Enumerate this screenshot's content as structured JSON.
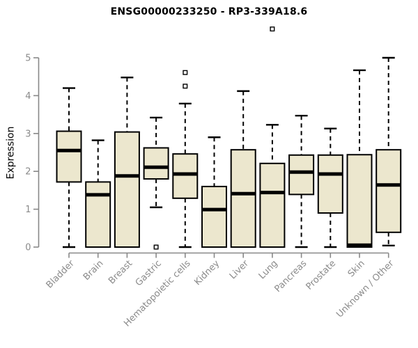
{
  "chart_data": {
    "type": "boxplot",
    "title": "ENSG00000233250 - RP3-339A18.6",
    "ylabel": "Expression",
    "xlabel": "",
    "ylim": [
      0,
      5
    ],
    "yticks": [
      "0",
      "1",
      "2",
      "3",
      "4",
      "5"
    ],
    "grid": false,
    "legend": "none",
    "categories": [
      "Bladder",
      "Brain",
      "Breast",
      "Gastric",
      "Hematopoietic cells",
      "Kidney",
      "Liver",
      "Lung",
      "Pancreas",
      "Prostate",
      "Skin",
      "Unknown / Other"
    ],
    "series": [
      {
        "name": "Bladder",
        "low": 0,
        "q1": 1.72,
        "median": 2.55,
        "q3": 3.06,
        "high": 4.2,
        "outliers": []
      },
      {
        "name": "Brain",
        "low": 0,
        "q1": 0,
        "median": 1.38,
        "q3": 1.72,
        "high": 2.82,
        "outliers": []
      },
      {
        "name": "Breast",
        "low": 0,
        "q1": 0,
        "median": 1.88,
        "q3": 3.04,
        "high": 4.48,
        "outliers": []
      },
      {
        "name": "Gastric",
        "low": 1.05,
        "q1": 1.8,
        "median": 2.11,
        "q3": 2.62,
        "high": 3.42,
        "outliers": [
          0
        ]
      },
      {
        "name": "Hematopoietic cells",
        "low": 0,
        "q1": 1.29,
        "median": 1.93,
        "q3": 2.46,
        "high": 3.79,
        "outliers": [
          4.61,
          4.25
        ]
      },
      {
        "name": "Kidney",
        "low": 0,
        "q1": 0,
        "median": 0.99,
        "q3": 1.6,
        "high": 2.9,
        "outliers": []
      },
      {
        "name": "Liver",
        "low": 0,
        "q1": 0,
        "median": 1.41,
        "q3": 2.57,
        "high": 4.12,
        "outliers": []
      },
      {
        "name": "Lung",
        "low": 0,
        "q1": 0,
        "median": 1.44,
        "q3": 2.21,
        "high": 3.23,
        "outliers": [
          5.76
        ]
      },
      {
        "name": "Pancreas",
        "low": 0,
        "q1": 1.39,
        "median": 1.98,
        "q3": 2.43,
        "high": 3.47,
        "outliers": []
      },
      {
        "name": "Prostate",
        "low": 0,
        "q1": 0.9,
        "median": 1.93,
        "q3": 2.43,
        "high": 3.13,
        "outliers": []
      },
      {
        "name": "Skin",
        "low": 0,
        "q1": 0,
        "median": 0.05,
        "q3": 2.44,
        "high": 4.67,
        "outliers": []
      },
      {
        "name": "Unknown / Other",
        "low": 0.04,
        "q1": 0.39,
        "median": 1.64,
        "q3": 2.57,
        "high": 5.0,
        "outliers": []
      }
    ],
    "colors": {
      "box_fill": "#ECE7CE",
      "box_stroke": "#000000",
      "median": "#000000",
      "whisker": "#000000",
      "axis": "#888888",
      "tick_label": "#8a8a8a",
      "title": "#000000"
    }
  }
}
